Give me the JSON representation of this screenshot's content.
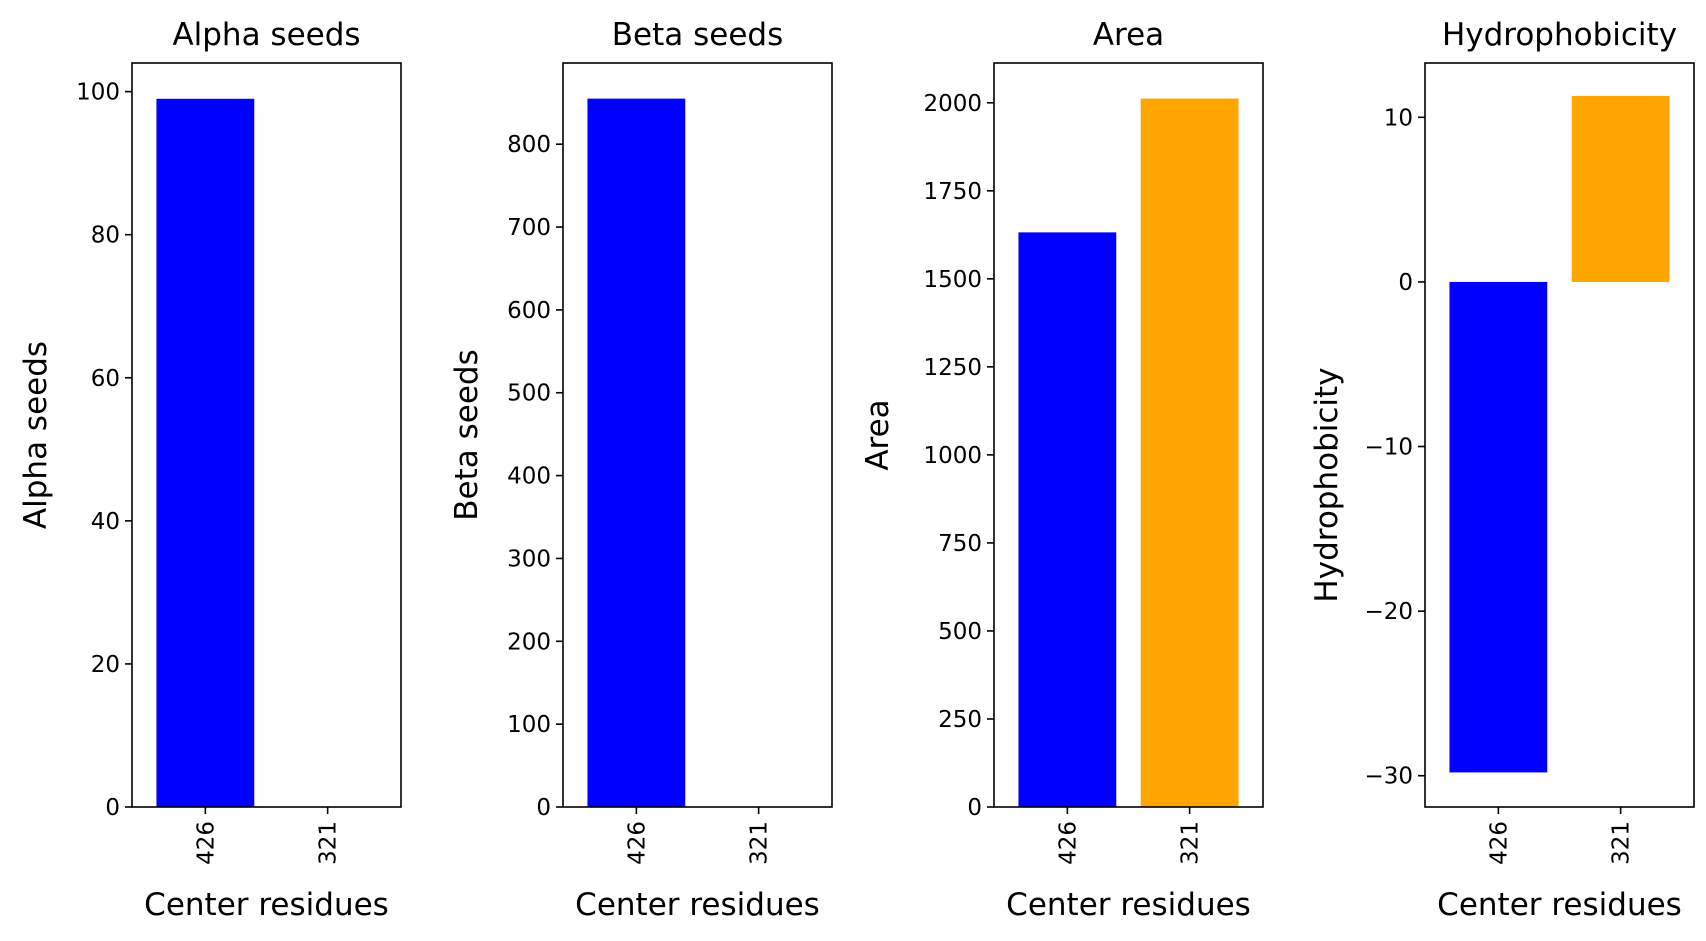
{
  "chart_data": [
    {
      "type": "bar",
      "title": "Alpha seeds",
      "xlabel": "Center residues",
      "ylabel": "Alpha seeds",
      "categories": [
        "426",
        "321"
      ],
      "values": [
        99,
        0
      ],
      "colors": [
        "#0000ff",
        "#ffa500"
      ],
      "ylim": [
        0,
        104
      ],
      "yticks": [
        0,
        20,
        40,
        60,
        80,
        100
      ],
      "ytick_labels": [
        "0",
        "20",
        "40",
        "60",
        "80",
        "100"
      ]
    },
    {
      "type": "bar",
      "title": "Beta seeds",
      "xlabel": "Center residues",
      "ylabel": "Beta seeds",
      "categories": [
        "426",
        "321"
      ],
      "values": [
        855,
        0
      ],
      "colors": [
        "#0000ff",
        "#ffa500"
      ],
      "ylim": [
        0,
        898
      ],
      "yticks": [
        0,
        100,
        200,
        300,
        400,
        500,
        600,
        700,
        800
      ],
      "ytick_labels": [
        "0",
        "100",
        "200",
        "300",
        "400",
        "500",
        "600",
        "700",
        "800"
      ]
    },
    {
      "type": "bar",
      "title": "Area",
      "xlabel": "Center residues",
      "ylabel": "Area",
      "categories": [
        "426",
        "321"
      ],
      "values": [
        1632,
        2012
      ],
      "colors": [
        "#0000ff",
        "#ffa500"
      ],
      "ylim": [
        0,
        2113
      ],
      "yticks": [
        0,
        250,
        500,
        750,
        1000,
        1250,
        1500,
        1750,
        2000
      ],
      "ytick_labels": [
        "0",
        "250",
        "500",
        "750",
        "1000",
        "1250",
        "1500",
        "1750",
        "2000"
      ]
    },
    {
      "type": "bar",
      "title": "Hydrophobicity",
      "xlabel": "Center residues",
      "ylabel": "Hydrophobicity",
      "categories": [
        "426",
        "321"
      ],
      "values": [
        -29.8,
        11.3
      ],
      "colors": [
        "#0000ff",
        "#ffa500"
      ],
      "ylim": [
        -31.9,
        13.3
      ],
      "yticks": [
        -30,
        -20,
        -10,
        0,
        10
      ],
      "ytick_labels": [
        "−30",
        "−20",
        "−10",
        "0",
        "10"
      ]
    }
  ]
}
